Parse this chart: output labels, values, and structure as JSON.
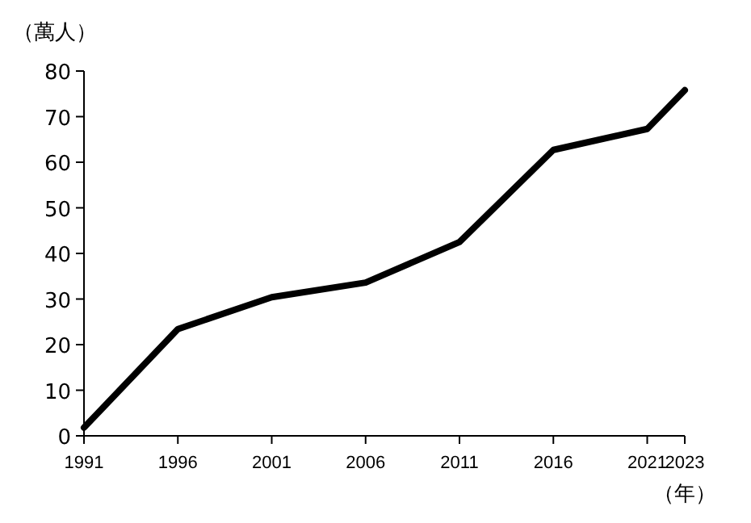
{
  "chart_data": {
    "type": "line",
    "ylabel": "（萬人）",
    "xlabel": "（年）",
    "x": [
      1991,
      1996,
      2001,
      2006,
      2011,
      2016,
      2021,
      2023
    ],
    "series": [
      {
        "color": "#000000",
        "values": [
          1.8,
          23.4,
          30.4,
          33.6,
          42.5,
          62.7,
          67.3,
          75.8
        ]
      }
    ],
    "xlim": [
      1991,
      2023
    ],
    "xticks": [
      1991,
      1996,
      2001,
      2006,
      2011,
      2016,
      2021,
      2023
    ],
    "ylim": [
      0,
      80
    ],
    "yticks": [
      0,
      10,
      20,
      30,
      40,
      50,
      60,
      70,
      80
    ],
    "grid": false,
    "marker": "none",
    "line_style": "solid"
  }
}
